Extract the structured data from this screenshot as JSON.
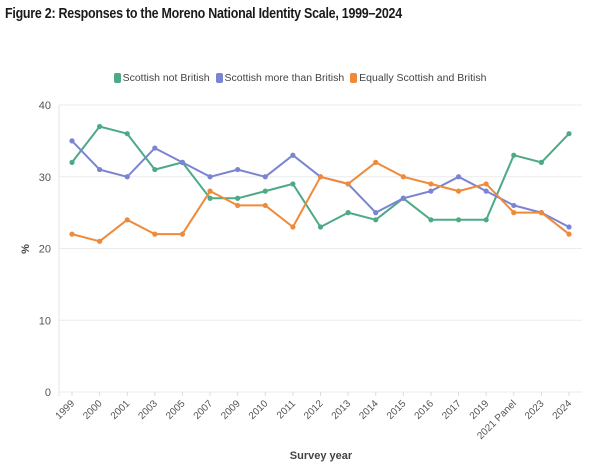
{
  "title": "Figure 2: Responses to the Moreno National Identity Scale, 1999–2024",
  "chart_data": {
    "type": "line",
    "title": "Figure 2: Responses to the Moreno National Identity Scale, 1999–2024",
    "xlabel": "Survey year",
    "ylabel": "%",
    "ylim": [
      0,
      40
    ],
    "yticks": [
      "0",
      "10",
      "20",
      "30",
      "40"
    ],
    "grid": true,
    "legend_position": "top-center",
    "categories": [
      "1999",
      "2000",
      "2001",
      "2003",
      "2005",
      "2007",
      "2009",
      "2010",
      "2011",
      "2012",
      "2013",
      "2014",
      "2015",
      "2016",
      "2017",
      "2019",
      "2021 Panel",
      "2023",
      "2024"
    ],
    "series": [
      {
        "name": "Scottish not British",
        "color": "#4daa85",
        "values": [
          32,
          37,
          36,
          31,
          32,
          27,
          27,
          28,
          29,
          23,
          25,
          24,
          27,
          24,
          24,
          24,
          33,
          32,
          36
        ]
      },
      {
        "name": "Scottish more than British",
        "color": "#7b84d1",
        "values": [
          35,
          31,
          30,
          34,
          32,
          30,
          31,
          30,
          33,
          30,
          29,
          25,
          27,
          28,
          30,
          28,
          26,
          25,
          23
        ]
      },
      {
        "name": "Equally Scottish and British",
        "color": "#ef8a3a",
        "values": [
          22,
          21,
          24,
          22,
          22,
          28,
          26,
          26,
          23,
          30,
          29,
          32,
          30,
          29,
          28,
          29,
          25,
          25,
          22
        ]
      }
    ]
  }
}
